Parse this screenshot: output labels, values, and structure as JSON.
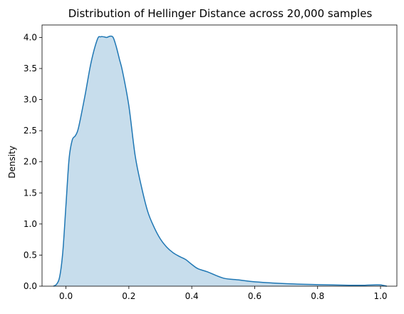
{
  "chart_data": {
    "type": "area",
    "title": "Distribution of Hellinger Distance across 20,000 samples",
    "xlabel": "",
    "ylabel": "Density",
    "xlim": [
      -0.076,
      1.052
    ],
    "ylim": [
      0,
      4.2
    ],
    "xticks": [
      0.0,
      0.2,
      0.4,
      0.6,
      0.8,
      1.0
    ],
    "xtick_labels": [
      "0.0",
      "0.2",
      "0.4",
      "0.6",
      "0.8",
      "1.0"
    ],
    "yticks": [
      0.0,
      0.5,
      1.0,
      1.5,
      2.0,
      2.5,
      3.0,
      3.5,
      4.0
    ],
    "ytick_labels": [
      "0.0",
      "0.5",
      "1.0",
      "1.5",
      "2.0",
      "2.5",
      "3.0",
      "3.5",
      "4.0"
    ],
    "grid": false,
    "legend": "none",
    "line_color": "#1f77b4",
    "fill_color": "#1f77b4",
    "fill_opacity": 0.25,
    "series": [
      {
        "x": [
          -0.04,
          -0.03,
          -0.02,
          -0.01,
          0.0,
          0.01,
          0.02,
          0.03,
          0.04,
          0.06,
          0.08,
          0.1,
          0.11,
          0.12,
          0.13,
          0.14,
          0.15,
          0.16,
          0.17,
          0.18,
          0.2,
          0.22,
          0.24,
          0.26,
          0.28,
          0.3,
          0.32,
          0.34,
          0.36,
          0.38,
          0.4,
          0.42,
          0.45,
          0.5,
          0.55,
          0.6,
          0.7,
          0.8,
          0.9,
          0.95,
          0.98,
          1.0,
          1.02
        ],
        "y": [
          0.0,
          0.03,
          0.15,
          0.55,
          1.3,
          2.05,
          2.35,
          2.42,
          2.55,
          3.05,
          3.6,
          3.97,
          4.01,
          4.01,
          4.0,
          4.02,
          4.0,
          3.85,
          3.65,
          3.45,
          2.9,
          2.1,
          1.6,
          1.2,
          0.95,
          0.76,
          0.63,
          0.54,
          0.48,
          0.43,
          0.35,
          0.28,
          0.23,
          0.13,
          0.1,
          0.07,
          0.04,
          0.025,
          0.015,
          0.015,
          0.02,
          0.02,
          0.0
        ]
      }
    ]
  }
}
